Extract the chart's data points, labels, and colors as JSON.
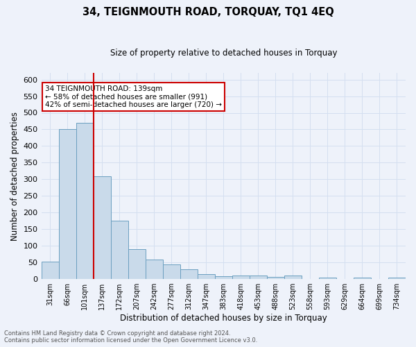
{
  "title": "34, TEIGNMOUTH ROAD, TORQUAY, TQ1 4EQ",
  "subtitle": "Size of property relative to detached houses in Torquay",
  "xlabel": "Distribution of detached houses by size in Torquay",
  "ylabel": "Number of detached properties",
  "footer_line1": "Contains HM Land Registry data © Crown copyright and database right 2024.",
  "footer_line2": "Contains public sector information licensed under the Open Government Licence v3.0.",
  "categories": [
    "31sqm",
    "66sqm",
    "101sqm",
    "137sqm",
    "172sqm",
    "207sqm",
    "242sqm",
    "277sqm",
    "312sqm",
    "347sqm",
    "383sqm",
    "418sqm",
    "453sqm",
    "488sqm",
    "523sqm",
    "558sqm",
    "593sqm",
    "629sqm",
    "664sqm",
    "699sqm",
    "734sqm"
  ],
  "values": [
    53,
    450,
    470,
    310,
    175,
    90,
    58,
    43,
    30,
    15,
    9,
    10,
    10,
    7,
    10,
    0,
    5,
    0,
    5,
    0,
    5
  ],
  "bar_color": "#c9daea",
  "bar_edge_color": "#6b9fc0",
  "bar_edge_width": 0.7,
  "grid_color": "#d4dff0",
  "background_color": "#eef2fa",
  "red_line_x": 2.5,
  "red_line_color": "#cc0000",
  "annotation_text": "34 TEIGNMOUTH ROAD: 139sqm\n← 58% of detached houses are smaller (991)\n42% of semi-detached houses are larger (720) →",
  "annotation_box_color": "#ffffff",
  "annotation_box_edge_color": "#cc0000",
  "ylim": [
    0,
    620
  ],
  "yticks": [
    0,
    50,
    100,
    150,
    200,
    250,
    300,
    350,
    400,
    450,
    500,
    550,
    600
  ]
}
